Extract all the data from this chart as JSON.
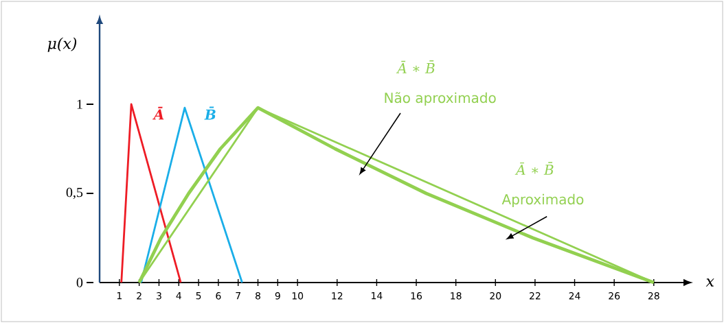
{
  "chart_data": {
    "type": "line",
    "xlabel": "x",
    "ylabel": "μ(x)",
    "xlim": [
      0,
      29.5
    ],
    "ylim": [
      0,
      1.45
    ],
    "xticks": [
      1,
      2,
      3,
      4,
      5,
      6,
      7,
      8,
      9,
      10,
      12,
      14,
      16,
      18,
      20,
      22,
      24,
      26,
      28
    ],
    "yticks": [
      0,
      {
        "value": 0.5,
        "label": "0,5"
      },
      1
    ],
    "grid": false,
    "marker": "none",
    "line_style": "solid",
    "series": [
      {
        "name": "Ā",
        "color": "#ee1c25",
        "x": [
          1.1,
          1.6,
          4.1
        ],
        "values": [
          0,
          1,
          0
        ]
      },
      {
        "name": "B̄",
        "color": "#1aaee8",
        "x": [
          2.1,
          4.3,
          7.2
        ],
        "values": [
          0,
          0.98,
          0
        ]
      },
      {
        "color": "#92d050",
        "x": [
          2,
          3.1,
          4.5,
          6.1,
          8,
          11.9,
          16.5,
          21.9,
          28
        ],
        "values": [
          0,
          0.25,
          0.5,
          0.75,
          0.98,
          0.75,
          0.5,
          0.25,
          0
        ]
      },
      {
        "color": "#92d050",
        "x": [
          2,
          8,
          28
        ],
        "values": [
          0,
          0.98,
          0
        ]
      }
    ],
    "annotations": [
      "Ā ∗ B̄",
      "Não aproximado",
      "Ā ∗ B̄",
      "Aproximado"
    ]
  }
}
